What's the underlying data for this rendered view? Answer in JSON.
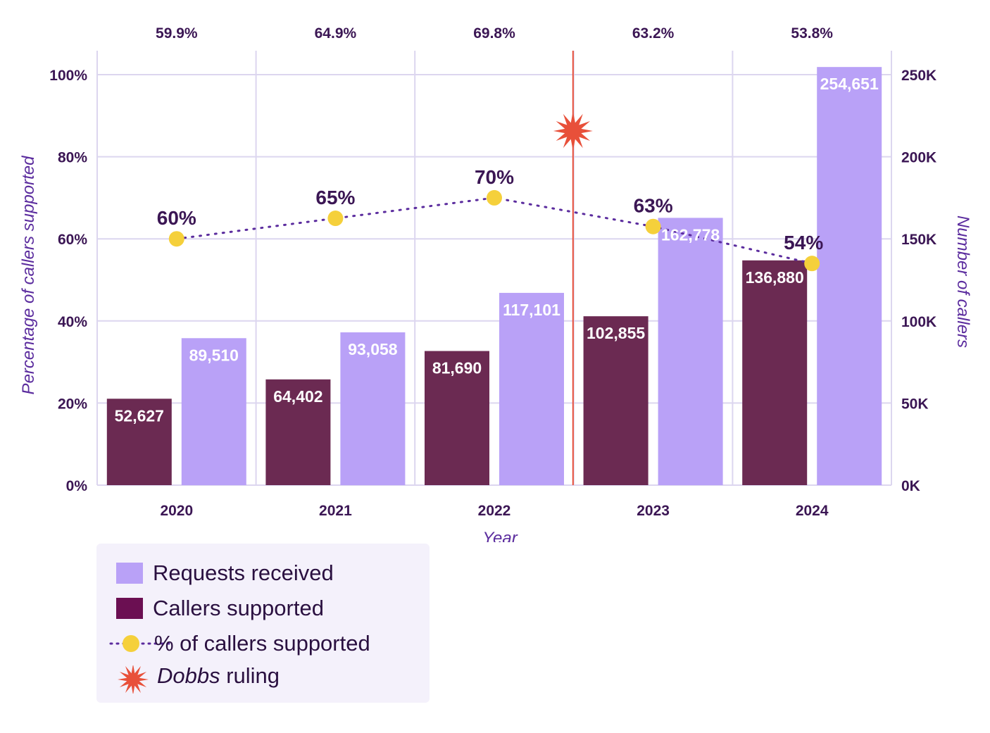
{
  "chart_data": {
    "type": "bar",
    "categories": [
      "2020",
      "2021",
      "2022",
      "2023",
      "2024"
    ],
    "series": [
      {
        "name": "Callers supported",
        "axis": "right",
        "values": [
          52627,
          64402,
          81690,
          102855,
          136880
        ],
        "labels": [
          "52,627",
          "64,402",
          "81,690",
          "102,855",
          "136,880"
        ],
        "color": "#6b2a52"
      },
      {
        "name": "Requests received",
        "axis": "right",
        "values": [
          89510,
          93058,
          117101,
          162778,
          254651
        ],
        "labels": [
          "89,510",
          "93,058",
          "117,101",
          "162,778",
          "254,651"
        ],
        "color": "#b9a1f7"
      },
      {
        "name": "% of callers supported",
        "type": "line",
        "axis": "left",
        "values": [
          60,
          65,
          70,
          63,
          54
        ],
        "labels": [
          "60%",
          "65%",
          "70%",
          "63%",
          "54%"
        ],
        "color": "#f5d03b",
        "line_color": "#5b2c9e"
      }
    ],
    "top_labels": [
      "59.9%",
      "64.9%",
      "69.8%",
      "63.2%",
      "53.8%"
    ],
    "xlabel": "Year",
    "ylabel_left": "Percentage of callers supported",
    "ylabel_right": "Number of callers",
    "yticks_left": [
      "0%",
      "20%",
      "40%",
      "60%",
      "80%",
      "100%"
    ],
    "yticks_right": [
      "0K",
      "50K",
      "100K",
      "150K",
      "200K",
      "250K"
    ],
    "ylim_left": [
      0,
      100
    ],
    "ylim_right": [
      0,
      250000
    ],
    "annotation": {
      "name": "Dobbs ruling",
      "between": [
        "2022",
        "2023"
      ],
      "color": "#e8503a"
    },
    "grid": true,
    "legend_position": "bottom-left"
  },
  "legend": {
    "items": [
      {
        "label": "Requests received",
        "color": "#b9a1f7"
      },
      {
        "label": "Callers supported",
        "color": "#6b2a52"
      },
      {
        "label": "% of callers supported"
      },
      {
        "label_em": "Dobbs",
        "label_rest": " ruling"
      }
    ]
  }
}
